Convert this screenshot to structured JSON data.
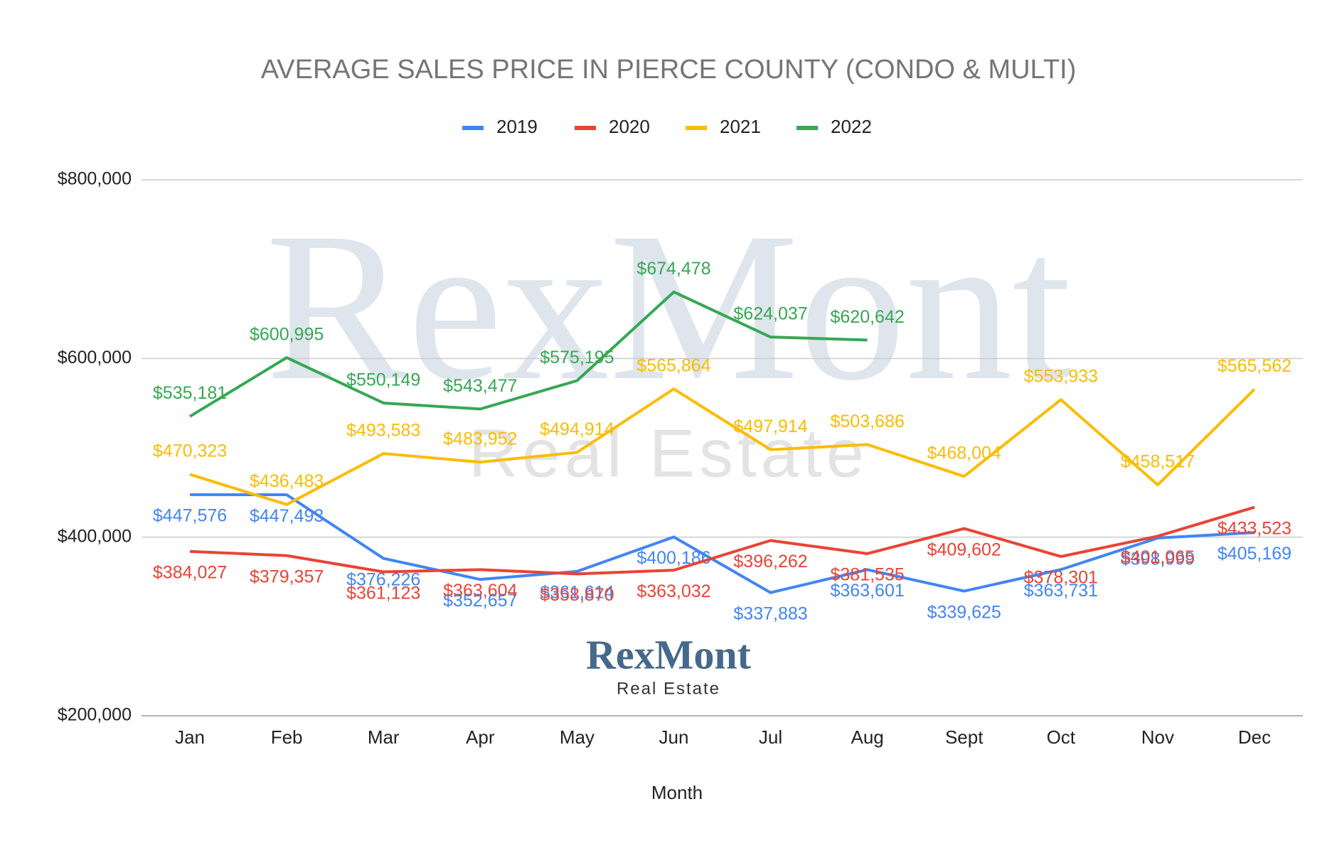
{
  "chart_data": {
    "type": "line",
    "title": "AVERAGE SALES PRICE IN PIERCE COUNTY (CONDO & MULTI)",
    "x_label": "Month",
    "categories": [
      "Jan",
      "Feb",
      "Mar",
      "Apr",
      "May",
      "Jun",
      "Jul",
      "Aug",
      "Sept",
      "Oct",
      "Nov",
      "Dec"
    ],
    "series": [
      {
        "name": "2019",
        "color": "#4285f4",
        "values": [
          447576,
          447493,
          376226,
          352657,
          361614,
          400186,
          337883,
          363601,
          339625,
          363731,
          398999,
          405169
        ],
        "value_labels": [
          "$447,576",
          "$447,493",
          "$376,226",
          "$352,657",
          "$361,614",
          "$400,186",
          "$337,883",
          "$363,601",
          "$339,625",
          "$363,731",
          "$398,999",
          "$405,169"
        ]
      },
      {
        "name": "2020",
        "color": "#ea4335",
        "values": [
          384027,
          379357,
          361123,
          363604,
          358870,
          363032,
          396262,
          381535,
          409602,
          378301,
          401065,
          433523
        ],
        "value_labels": [
          "$384,027",
          "$379,357",
          "$361,123",
          "$363,604",
          "$358,870",
          "$363,032",
          "$396,262",
          "$381,535",
          "$409,602",
          "$378,301",
          "$401,065",
          "$433,523"
        ]
      },
      {
        "name": "2021",
        "color": "#fbbc04",
        "values": [
          470323,
          436483,
          493583,
          483952,
          494914,
          565864,
          497914,
          503686,
          468004,
          553933,
          458517,
          565562
        ],
        "value_labels": [
          "$470,323",
          "$436,483",
          "$493,583",
          "$483,952",
          "$494,914",
          "$565,864",
          "$497,914",
          "$503,686",
          "$468,004",
          "$553,933",
          "$458,517",
          "$565,562"
        ]
      },
      {
        "name": "2022",
        "color": "#34a853",
        "values": [
          535181,
          600995,
          550149,
          543477,
          575195,
          674478,
          624037,
          620642,
          null,
          null,
          null,
          null
        ],
        "value_labels": [
          "$535,181",
          "$600,995",
          "$550,149",
          "$543,477",
          "$575,195",
          "$674,478",
          "$624,037",
          "$620,642",
          null,
          null,
          null,
          null
        ]
      }
    ],
    "ylim": [
      200000,
      800000
    ],
    "yticks": [
      {
        "value": 200000,
        "label": "$200,000"
      },
      {
        "value": 400000,
        "label": "$400,000"
      },
      {
        "value": 600000,
        "label": "$600,000"
      },
      {
        "value": 800000,
        "label": "$800,000"
      }
    ],
    "grid": true,
    "legend": "top",
    "watermark": {
      "text": "RexMont",
      "subtext": "Real Estate"
    },
    "logo": {
      "text": "RexMont",
      "subtext": "Real Estate"
    }
  }
}
